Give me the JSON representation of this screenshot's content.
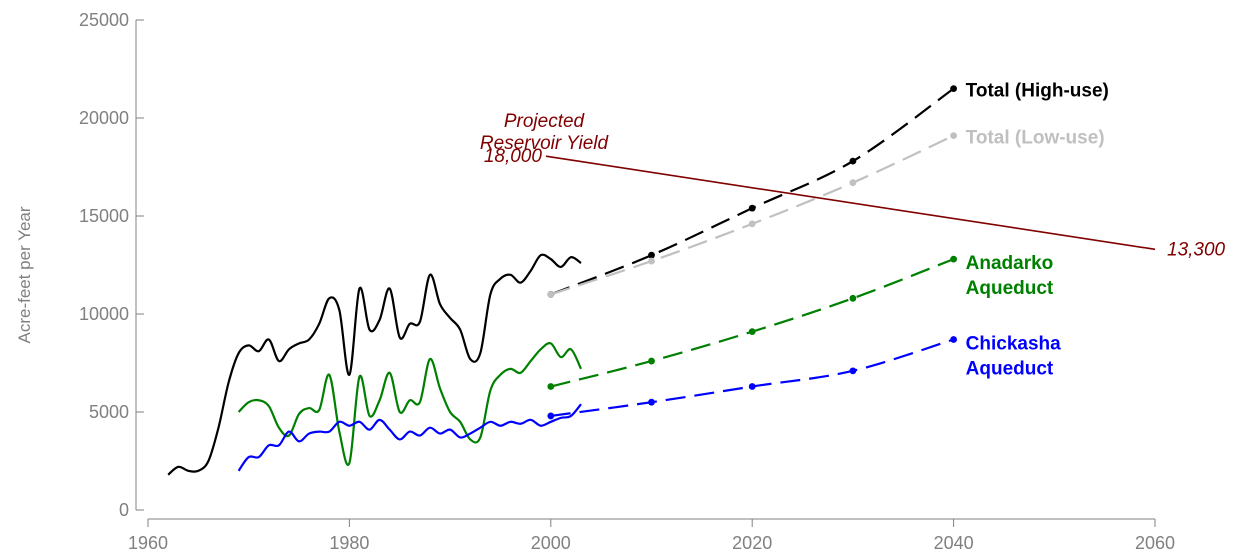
{
  "chart_data": {
    "type": "line",
    "ylabel": "Acre-feet per Year",
    "xlim": [
      1960,
      2060
    ],
    "ylim": [
      0,
      25000
    ],
    "x_ticks": [
      "1960",
      "1980",
      "2000",
      "2020",
      "2040",
      "2060"
    ],
    "y_ticks": [
      "0",
      "5000",
      "10000",
      "15000",
      "20000",
      "25000"
    ],
    "grid": false,
    "historical": [
      {
        "name": "Total",
        "color": "#000000",
        "x": [
          1962,
          1963,
          1964,
          1965,
          1966,
          1967,
          1968,
          1969,
          1970,
          1971,
          1972,
          1973,
          1974,
          1975,
          1976,
          1977,
          1978,
          1979,
          1980,
          1981,
          1982,
          1983,
          1984,
          1985,
          1986,
          1987,
          1988,
          1989,
          1990,
          1991,
          1992,
          1993,
          1994,
          1995,
          1996,
          1997,
          1998,
          1999,
          2000,
          2001,
          2002,
          2003
        ],
        "y": [
          1800,
          2200,
          2000,
          2000,
          2500,
          4200,
          6500,
          8000,
          8400,
          8100,
          8700,
          7600,
          8200,
          8500,
          8700,
          9500,
          10800,
          10200,
          6900,
          11300,
          9200,
          9700,
          11300,
          8800,
          9500,
          9600,
          12000,
          10500,
          9800,
          9200,
          7700,
          8000,
          11000,
          11800,
          12000,
          11600,
          12200,
          13000,
          12800,
          12400,
          12900,
          12600
        ]
      },
      {
        "name": "Anadarko",
        "color": "#008000",
        "x": [
          1969,
          1970,
          1971,
          1972,
          1973,
          1974,
          1975,
          1976,
          1977,
          1978,
          1979,
          1980,
          1981,
          1982,
          1983,
          1984,
          1985,
          1986,
          1987,
          1988,
          1989,
          1990,
          1991,
          1992,
          1993,
          1994,
          1995,
          1996,
          1997,
          1998,
          1999,
          2000,
          2001,
          2002,
          2003
        ],
        "y": [
          5000,
          5500,
          5600,
          5300,
          4200,
          3800,
          4900,
          5200,
          5100,
          6900,
          4000,
          2400,
          6800,
          4800,
          5600,
          7000,
          5000,
          5600,
          5500,
          7700,
          6200,
          5000,
          4500,
          3600,
          3700,
          6100,
          6900,
          7200,
          7000,
          7600,
          8200,
          8500,
          7800,
          8200,
          7200
        ]
      },
      {
        "name": "Chickasha",
        "color": "#0000ff",
        "x": [
          1969,
          1970,
          1971,
          1972,
          1973,
          1974,
          1975,
          1976,
          1977,
          1978,
          1979,
          1980,
          1981,
          1982,
          1983,
          1984,
          1985,
          1986,
          1987,
          1988,
          1989,
          1990,
          1991,
          1992,
          1993,
          1994,
          1995,
          1996,
          1997,
          1998,
          1999,
          2000,
          2001,
          2002,
          2003
        ],
        "y": [
          2000,
          2700,
          2700,
          3300,
          3300,
          4000,
          3500,
          3900,
          4000,
          4000,
          4500,
          4300,
          4500,
          4100,
          4600,
          4100,
          3600,
          4000,
          3800,
          4200,
          3900,
          4100,
          3700,
          3900,
          4200,
          4500,
          4300,
          4500,
          4400,
          4600,
          4300,
          4500,
          4700,
          4800,
          5400
        ]
      }
    ],
    "projections": [
      {
        "name": "Total (High-use)",
        "label": "Total (High-use)",
        "color": "#000000",
        "x": [
          2000,
          2010,
          2020,
          2030,
          2040
        ],
        "y": [
          11000,
          13000,
          15400,
          17800,
          21500
        ]
      },
      {
        "name": "Total (Low-use)",
        "label": "Total (Low-use)",
        "color": "#c0c0c0",
        "x": [
          2000,
          2010,
          2020,
          2030,
          2040
        ],
        "y": [
          11000,
          12700,
          14600,
          16700,
          19100
        ]
      },
      {
        "name": "Anadarko Aqueduct",
        "label_lines": [
          "Anadarko",
          "Aqueduct"
        ],
        "color": "#008000",
        "x": [
          2000,
          2010,
          2020,
          2030,
          2040
        ],
        "y": [
          6300,
          7600,
          9100,
          10800,
          12800
        ]
      },
      {
        "name": "Chickasha Aqueduct",
        "label_lines": [
          "Chickasha",
          "Aqueduct"
        ],
        "color": "#0000ff",
        "x": [
          2000,
          2010,
          2020,
          2030,
          2040
        ],
        "y": [
          4800,
          5500,
          6300,
          7100,
          8700
        ]
      }
    ],
    "reservoir_yield": {
      "label_lines": [
        "Projected",
        "Reservoir Yield"
      ],
      "start_label": "18,000",
      "end_label": "13,300",
      "x": [
        2002,
        2060
      ],
      "y": [
        18000,
        13300
      ],
      "color": "#800000"
    }
  }
}
